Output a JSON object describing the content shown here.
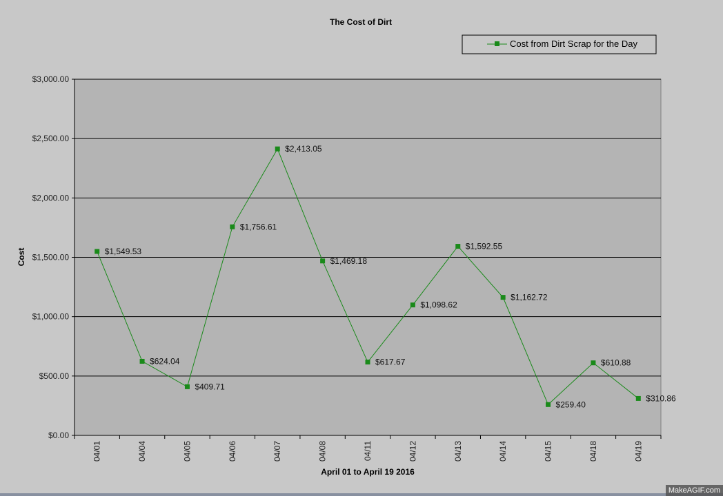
{
  "chart_data": {
    "type": "line",
    "title": "The Cost of Dirt",
    "xlabel": "April 01 to April 19 2016",
    "ylabel": "Cost",
    "ylim": [
      0,
      3000
    ],
    "yticks": [
      0,
      500,
      1000,
      1500,
      2000,
      2500,
      3000
    ],
    "ytick_labels": [
      "$0.00",
      "$500.00",
      "$1,000.00",
      "$1,500.00",
      "$2,000.00",
      "$2,500.00",
      "$3,000.00"
    ],
    "grid": true,
    "legend_position": "top-right",
    "categories": [
      "04/01",
      "04/04",
      "04/05",
      "04/06",
      "04/07",
      "04/08",
      "04/11",
      "04/12",
      "04/13",
      "04/14",
      "04/15",
      "04/18",
      "04/19"
    ],
    "series": [
      {
        "name": "Cost from Dirt Scrap for the Day",
        "color": "#1a8a1a",
        "values": [
          1549.53,
          624.04,
          409.71,
          1756.61,
          2413.05,
          1469.18,
          617.67,
          1098.62,
          1592.55,
          1162.72,
          259.4,
          610.88,
          310.86
        ],
        "labels": [
          "$1,549.53",
          "$624.04",
          "$409.71",
          "$1,756.61",
          "$2,413.05",
          "$1,469.18",
          "$617.67",
          "$1,098.62",
          "$1,592.55",
          "$1,162.72",
          "$259.40",
          "$610.88",
          "$310.86"
        ]
      }
    ]
  },
  "watermark": "MakeAGIF.com"
}
